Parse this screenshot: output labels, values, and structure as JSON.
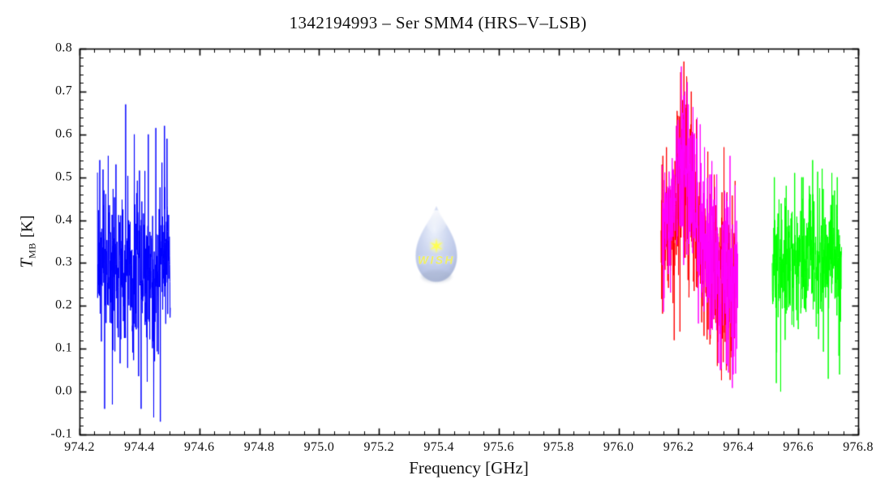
{
  "chart_data": {
    "type": "line",
    "title": "1342194993 – Ser SMM4 (HRS–V–LSB)",
    "xlabel": "Frequency [GHz]",
    "ylabel": "T_MB [K]",
    "ylabel_parts": {
      "symbol": "T",
      "subscript": "MB",
      "unit": "[K]"
    },
    "background": "#ffffff",
    "axis_color": "#000000",
    "grid": false,
    "legend": null,
    "xlim": [
      974.2,
      976.8
    ],
    "ylim": [
      -0.1,
      0.8
    ],
    "xticks": [
      974.2,
      974.4,
      974.6,
      974.8,
      975.0,
      975.2,
      975.4,
      975.6,
      975.8,
      976.0,
      976.2,
      976.4,
      976.6,
      976.8
    ],
    "xtick_labels": [
      "974.2",
      "974.4",
      "974.6",
      "974.8",
      "975.0",
      "975.2",
      "975.4",
      "975.6",
      "975.8",
      "976.0",
      "976.2",
      "976.4",
      "976.6",
      "976.8"
    ],
    "yticks": [
      -0.1,
      0.0,
      0.1,
      0.2,
      0.3,
      0.4,
      0.5,
      0.6,
      0.7,
      0.8
    ],
    "ytick_labels": [
      "-0.1",
      "0.0",
      "0.1",
      "0.2",
      "0.3",
      "0.4",
      "0.5",
      "0.6",
      "0.7",
      "0.8"
    ],
    "x_minor_step": 0.05,
    "y_minor_step": 0.02,
    "series": [
      {
        "name": "blue-segment",
        "color": "#0000ff",
        "x_range": [
          974.26,
          974.503
        ],
        "channel_ghz": 0.0006,
        "envelope": [
          [
            974.26,
            0.29,
            0.085
          ],
          [
            974.3,
            0.3,
            0.09
          ],
          [
            974.34,
            0.3,
            0.09
          ],
          [
            974.38,
            0.28,
            0.09
          ],
          [
            974.42,
            0.27,
            0.095
          ],
          [
            974.455,
            0.27,
            0.095
          ],
          [
            974.48,
            0.33,
            0.08
          ],
          [
            974.503,
            0.32,
            0.07
          ]
        ],
        "spikes": [
          [
            974.268,
            0.54
          ],
          [
            974.284,
            -0.04
          ],
          [
            974.296,
            0.55
          ],
          [
            974.31,
            -0.03
          ],
          [
            974.322,
            0.53
          ],
          [
            974.354,
            0.67
          ],
          [
            974.383,
            0.6
          ],
          [
            974.406,
            -0.04
          ],
          [
            974.43,
            0.6
          ],
          [
            974.448,
            -0.06
          ],
          [
            974.455,
            0.615
          ],
          [
            974.47,
            -0.07
          ],
          [
            974.484,
            0.62
          ],
          [
            974.492,
            0.59
          ]
        ]
      },
      {
        "name": "red-segment",
        "color": "#ff0000",
        "x_range": [
          976.142,
          976.392
        ],
        "channel_ghz": 0.0006,
        "envelope": [
          [
            976.142,
            0.36,
            0.085
          ],
          [
            976.165,
            0.38,
            0.09
          ],
          [
            976.19,
            0.44,
            0.09
          ],
          [
            976.212,
            0.52,
            0.095
          ],
          [
            976.232,
            0.49,
            0.1
          ],
          [
            976.255,
            0.4,
            0.095
          ],
          [
            976.285,
            0.33,
            0.095
          ],
          [
            976.32,
            0.3,
            0.1
          ],
          [
            976.355,
            0.28,
            0.1
          ],
          [
            976.392,
            0.27,
            0.09
          ]
        ],
        "spikes": [
          [
            976.148,
            0.55
          ],
          [
            976.16,
            0.57
          ],
          [
            976.186,
            0.12
          ],
          [
            976.196,
            0.64
          ],
          [
            976.205,
            0.14
          ],
          [
            976.218,
            0.77
          ],
          [
            976.228,
            0.73
          ],
          [
            976.243,
            0.7
          ],
          [
            976.298,
            0.56
          ],
          [
            976.305,
            0.11
          ],
          [
            976.33,
            0.06
          ],
          [
            976.352,
            0.57
          ],
          [
            976.36,
            0.05
          ],
          [
            976.378,
            0.08
          ]
        ]
      },
      {
        "name": "magenta-segment",
        "color": "#ff00ff",
        "x_range": [
          976.146,
          976.398
        ],
        "channel_ghz": 0.0006,
        "envelope": [
          [
            976.146,
            0.36,
            0.085
          ],
          [
            976.17,
            0.41,
            0.09
          ],
          [
            976.195,
            0.47,
            0.09
          ],
          [
            976.218,
            0.53,
            0.1
          ],
          [
            976.238,
            0.47,
            0.1
          ],
          [
            976.262,
            0.38,
            0.1
          ],
          [
            976.292,
            0.32,
            0.105
          ],
          [
            976.325,
            0.29,
            0.105
          ],
          [
            976.36,
            0.28,
            0.105
          ],
          [
            976.398,
            0.27,
            0.1
          ]
        ],
        "spikes": [
          [
            976.213,
            0.65
          ],
          [
            976.221,
            0.7
          ],
          [
            976.233,
            0.67
          ],
          [
            976.252,
            0.6
          ],
          [
            976.287,
            0.57
          ],
          [
            976.34,
            0.05
          ],
          [
            976.364,
            0.06
          ],
          [
            976.372,
            0.55
          ],
          [
            976.383,
            0.04
          ],
          [
            976.395,
            0.1
          ]
        ]
      },
      {
        "name": "green-segment",
        "color": "#00ff00",
        "x_range": [
          976.513,
          976.745
        ],
        "channel_ghz": 0.0006,
        "envelope": [
          [
            976.513,
            0.29,
            0.08
          ],
          [
            976.55,
            0.3,
            0.08
          ],
          [
            976.59,
            0.31,
            0.08
          ],
          [
            976.64,
            0.31,
            0.08
          ],
          [
            976.69,
            0.3,
            0.08
          ],
          [
            976.745,
            0.29,
            0.08
          ]
        ],
        "spikes": [
          [
            976.52,
            0.5
          ],
          [
            976.527,
            0.02
          ],
          [
            976.541,
            0.0
          ],
          [
            976.56,
            0.48
          ],
          [
            976.588,
            0.51
          ],
          [
            976.616,
            0.5
          ],
          [
            976.648,
            0.54
          ],
          [
            976.68,
            0.52
          ],
          [
            976.7,
            0.03
          ],
          [
            976.712,
            0.51
          ],
          [
            976.73,
            0.5
          ],
          [
            976.738,
            0.04
          ]
        ]
      }
    ],
    "watermark": {
      "label": "WISH",
      "drop_color": "#b6c4e8",
      "text_color": "#ebeb52",
      "star_color": "#ffff2d"
    }
  }
}
